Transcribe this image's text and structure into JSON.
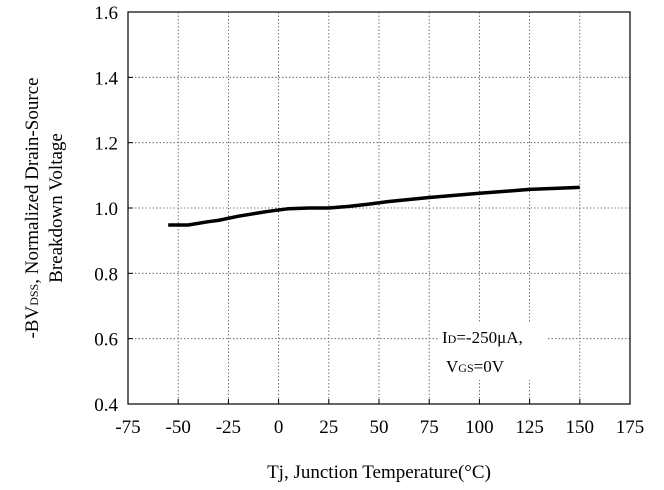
{
  "chart_data": {
    "type": "line",
    "title": "",
    "xlabel": "Tj, Junction Temperature(°C)",
    "ylabel_line1_prefix": "-BV",
    "ylabel_line1_sub": "DSS",
    "ylabel_line1_suffix": ", Normalized Drain-Source",
    "ylabel_line2": "Breakdown Voltage",
    "xlim": [
      -75,
      175
    ],
    "ylim": [
      0.4,
      1.6
    ],
    "xticks": [
      "-75",
      "-50",
      "-25",
      "0",
      "25",
      "50",
      "75",
      "100",
      "125",
      "150",
      "175"
    ],
    "yticks": [
      "0.4",
      "0.6",
      "0.8",
      "1.0",
      "1.2",
      "1.4",
      "1.6"
    ],
    "grid": true,
    "annotation": {
      "line1_prefix": "I",
      "line1_sub": "D",
      "line1_suffix": "=-250μA,",
      "line2_prefix": "V",
      "line2_sub": "GS",
      "line2_suffix": "=0V"
    },
    "series": [
      {
        "color": "#000000",
        "x": [
          -55,
          -45,
          -35,
          -30,
          -20,
          -10,
          -5,
          5,
          15,
          25,
          35,
          45,
          55,
          75,
          100,
          125,
          150
        ],
        "y": [
          0.948,
          0.948,
          0.958,
          0.962,
          0.975,
          0.985,
          0.99,
          0.998,
          1.0,
          1.0,
          1.005,
          1.012,
          1.02,
          1.032,
          1.045,
          1.057,
          1.063
        ]
      }
    ]
  }
}
